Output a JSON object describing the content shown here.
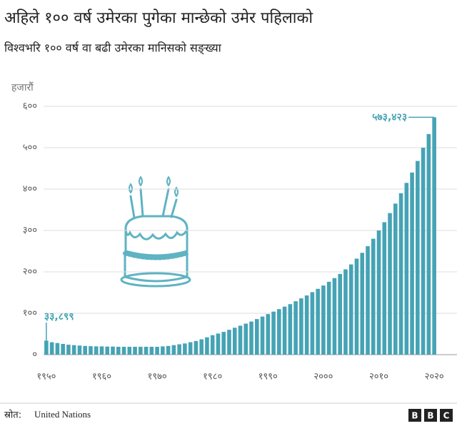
{
  "chart_data": {
    "type": "bar",
    "title": "अहिले १०० वर्ष उमेरका पुगेका मान्छेको उमेर पहिलाको",
    "subtitle": "विश्वभरि १०० वर्ष वा बढी उमेरका मानिसको सङ्ख्या",
    "y_label": "हजारौं",
    "source_label": "स्रोत:",
    "source": "United Nations",
    "color": "#45a3b5",
    "grid": true,
    "ylim": [
      0,
      600
    ],
    "yticks": [
      {
        "value": 0,
        "label": "०"
      },
      {
        "value": 100,
        "label": "१००"
      },
      {
        "value": 200,
        "label": "२००"
      },
      {
        "value": 300,
        "label": "३००"
      },
      {
        "value": 400,
        "label": "४००"
      },
      {
        "value": 500,
        "label": "५००"
      },
      {
        "value": 600,
        "label": "६००"
      }
    ],
    "categories": [
      "१९५०",
      null,
      null,
      null,
      null,
      null,
      null,
      null,
      null,
      null,
      "१९६०",
      null,
      null,
      null,
      null,
      null,
      null,
      null,
      null,
      null,
      "१९७०",
      null,
      null,
      null,
      null,
      null,
      null,
      null,
      null,
      null,
      "१९८०",
      null,
      null,
      null,
      null,
      null,
      null,
      null,
      null,
      null,
      "१९९०",
      null,
      null,
      null,
      null,
      null,
      null,
      null,
      null,
      null,
      "२०००",
      null,
      null,
      null,
      null,
      null,
      null,
      null,
      null,
      null,
      "२०१०",
      null,
      null,
      null,
      null,
      null,
      null,
      null,
      null,
      null,
      "२०२०"
    ],
    "values": [
      33.899,
      30,
      28,
      26,
      24,
      23,
      22,
      21,
      20.5,
      20,
      20,
      19.5,
      19.5,
      19,
      19,
      19,
      19,
      19,
      19,
      19,
      19,
      20,
      21,
      23,
      25,
      27,
      30,
      33,
      37,
      42,
      47,
      51,
      55,
      60,
      65,
      70,
      75,
      80,
      86,
      92,
      98,
      104,
      110,
      116,
      122,
      129,
      136,
      143,
      151,
      159,
      167,
      176,
      185,
      195,
      206,
      218,
      232,
      246,
      262,
      280,
      300,
      320,
      342,
      365,
      390,
      415,
      440,
      468,
      500,
      533,
      573.423
    ],
    "value_labels": [
      "३३,८९९",
      null,
      null,
      null,
      null,
      null,
      null,
      null,
      null,
      null,
      null,
      null,
      null,
      null,
      null,
      null,
      null,
      null,
      null,
      null,
      null,
      null,
      null,
      null,
      null,
      null,
      null,
      null,
      null,
      null,
      null,
      null,
      null,
      null,
      null,
      null,
      null,
      null,
      null,
      null,
      null,
      null,
      null,
      null,
      null,
      null,
      null,
      null,
      null,
      null,
      null,
      null,
      null,
      null,
      null,
      null,
      null,
      null,
      null,
      null,
      null,
      null,
      null,
      null,
      null,
      null,
      null,
      null,
      null,
      null,
      "५७३,४२३"
    ]
  }
}
